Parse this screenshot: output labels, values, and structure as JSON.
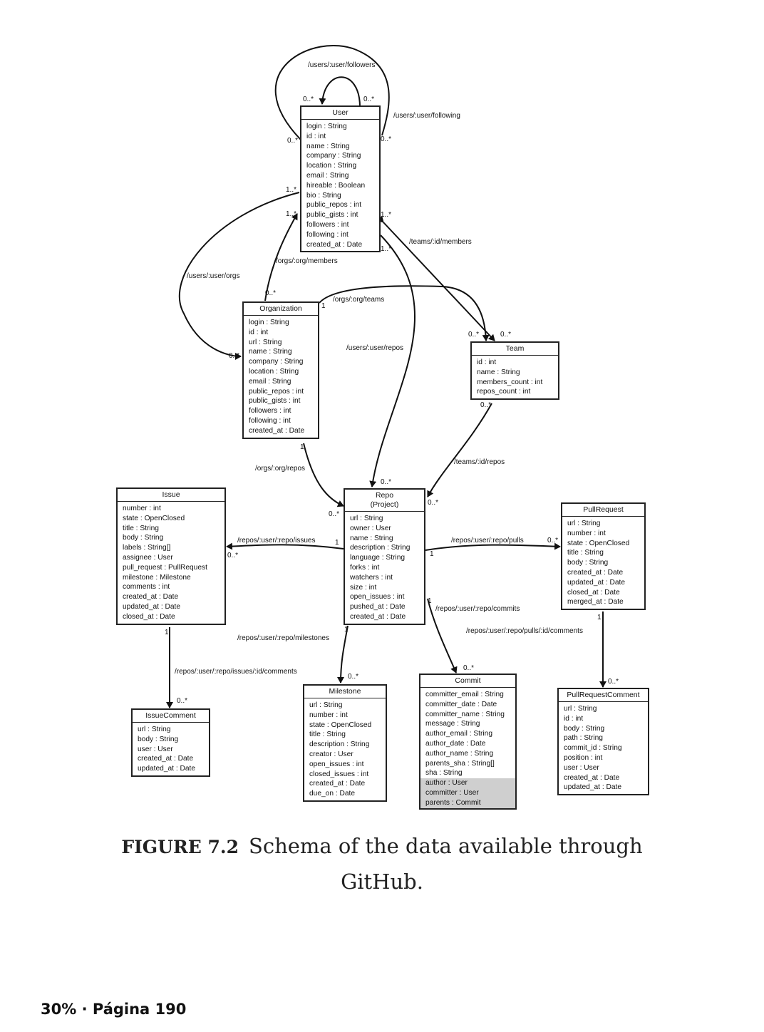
{
  "caption": {
    "figure_label": "FIGURE 7.2",
    "text": "Schema of the data available through GitHub."
  },
  "footer": {
    "progress": "30% · Página 190"
  },
  "classes": {
    "user": {
      "title": "User",
      "attrs": [
        "login : String",
        "id : int",
        "name : String",
        "company : String",
        "location : String",
        "email : String",
        "hireable : Boolean",
        "bio : String",
        "public_repos : int",
        "public_gists : int",
        "followers : int",
        "following : int",
        "created_at : Date"
      ]
    },
    "organization": {
      "title": "Organization",
      "attrs": [
        "login : String",
        "id : int",
        "url : String",
        "name : String",
        "company : String",
        "location : String",
        "email : String",
        "public_repos : int",
        "public_gists : int",
        "followers : int",
        "following : int",
        "created_at : Date"
      ]
    },
    "team": {
      "title": "Team",
      "attrs": [
        "id : int",
        "name : String",
        "members_count : int",
        "repos_count : int"
      ]
    },
    "repo": {
      "title": "Repo\n(Project)",
      "attrs": [
        "url : String",
        "owner : User",
        "name : String",
        "description : String",
        "language : String",
        "forks : int",
        "watchers : int",
        "size : int",
        "open_issues : int",
        "pushed_at : Date",
        "created_at : Date"
      ]
    },
    "issue": {
      "title": "Issue",
      "attrs": [
        "number : int",
        "state : OpenClosed",
        "title : String",
        "body : String",
        "labels : String[]",
        "assignee : User",
        "pull_request : PullRequest",
        "milestone : Milestone",
        "comments : int",
        "created_at : Date",
        "updated_at : Date",
        "closed_at : Date"
      ]
    },
    "pullrequest": {
      "title": "PullRequest",
      "attrs": [
        "url : String",
        "number : int",
        "state : OpenClosed",
        "title : String",
        "body : String",
        "created_at : Date",
        "updated_at : Date",
        "closed_at : Date",
        "merged_at : Date"
      ]
    },
    "issuecomment": {
      "title": "IssueComment",
      "attrs": [
        "url : String",
        "body : String",
        "user : User",
        "created_at : Date",
        "updated_at : Date"
      ]
    },
    "milestone": {
      "title": "Milestone",
      "attrs": [
        "url : String",
        "number : int",
        "state : OpenClosed",
        "title : String",
        "description : String",
        "creator : User",
        "open_issues : int",
        "closed_issues : int",
        "created_at : Date",
        "due_on : Date"
      ]
    },
    "commit": {
      "title": "Commit",
      "attrs": [
        "committer_email : String",
        "committer_date : Date",
        "committer_name : String",
        "message : String",
        "author_email : String",
        "author_date : Date",
        "author_name : String",
        "parents_sha : String[]",
        "sha : String"
      ],
      "highlighted_attrs": [
        "author : User",
        "committer : User",
        "parents : Commit"
      ]
    },
    "pullrequestcomment": {
      "title": "PullRequestComment",
      "attrs": [
        "url : String",
        "id : int",
        "body : String",
        "path : String",
        "commit_id : String",
        "position : int",
        "user : User",
        "created_at : Date",
        "updated_at : Date"
      ]
    }
  },
  "edge_labels": {
    "followers": "/users/:user/followers",
    "following": "/users/:user/following",
    "user_orgs": "/users/:user/orgs",
    "org_members": "/orgs/:org/members",
    "org_teams": "/orgs/:org/teams",
    "team_members": "/teams/:id/members",
    "user_repos": "/users/:user/repos",
    "team_repos": "/teams/:id/repos",
    "org_repos": "/orgs/:org/repos",
    "repo_issues": "/repos/:user/:repo/issues",
    "repo_pulls": "/repos/:user/:repo/pulls",
    "repo_commits": "/repos/:user/:repo/commits",
    "repo_milestones": "/repos/:user/:repo/milestones",
    "pull_comments": "/repos/:user/:repo/pulls/:id/comments",
    "issue_comments": "/repos/:user/:repo/issues/:id/comments"
  },
  "multiplicities": {
    "m01": "0..*",
    "m02": "0..*",
    "m03": "0..*",
    "m04": "0..*",
    "m05": "1..*",
    "m06": "1..*",
    "m07": "1..*",
    "m08": "1..*",
    "m09": "0..*",
    "m10": "1",
    "m11": "0..*",
    "m12": "0..*",
    "m13": "0..*",
    "m14": "0..*",
    "m15": "1",
    "m16": "0..*",
    "m17": "0..*",
    "m18": "0..*",
    "m19": "1",
    "m20": "0..*",
    "m21": "1",
    "m22": "0..*",
    "m23": "1",
    "m24": "1",
    "m25": "0..*",
    "m26": "1",
    "m27": "1",
    "m28": "0..*",
    "m29": "0..*",
    "m30": "0..*",
    "m31": "1"
  }
}
